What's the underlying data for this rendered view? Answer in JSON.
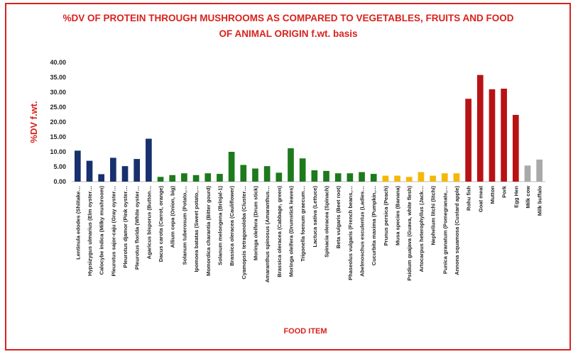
{
  "colors": {
    "border": "#d9221c",
    "title": "#d9221c",
    "mushroom": "#17306e",
    "vegetable": "#1d7a1d",
    "fruit": "#f5b70a",
    "animal": "#b81214",
    "milk": "#a9a9a9"
  },
  "chart_data": {
    "type": "bar",
    "title_line1": "%DV  OF PROTEIN THROUGH MUSHROOMS AS COMPARED TO VEGETABLES, FRUITS AND FOOD",
    "title_line2": "OF ANIMAL ORIGIN f.wt. basis",
    "xlabel": "FOOD ITEM",
    "ylabel": "%DV f.wt.",
    "ylim": [
      0,
      40
    ],
    "yticks": [
      "0.00",
      "5.00",
      "10.00",
      "15.00",
      "20.00",
      "25.00",
      "30.00",
      "35.00",
      "40.00"
    ],
    "grid": false,
    "legend": "none",
    "categories": [
      "Lentinula edodes (Shiitake…",
      "Hypsizygus ulmarius (Elm oyster…",
      "Calocybe indica (Milky mushroom)",
      "Pleurotus sajor-caju (Gray oyster…",
      "Pleurotus djamor (Pink oyster…",
      "Pleurotus florida (White oyster…",
      "Agaricus bisporus (Button…",
      "Dacus carota (Carrot, orange)",
      "Allium cepa (Onion, big)",
      "Solanum tuberosum (Potato,…",
      "Ipomoea batatas (Sweet potato,…",
      "Momordica charantia (Bitter gourd)",
      "Solanum melongena (Brinjal-1)",
      "Brassica oleracea (Cauliflower)",
      "Cyamopsis tetragonoloba (Cluster…",
      "Moringa oleifera (Drum stick)",
      "Amaranthus spinosus (Amaranthus…",
      "Brassica oleracea (Cabbage, green)",
      "Moringa oleifera (Drumstick leaves)",
      "Trigonella foenum graecum…",
      "Lactuca sativa (Lettuce)",
      "Spinacia oleracea (Spinach)",
      "Beta vulgaris (Beet root)",
      "Phaseolus vulgaris (French beans,…",
      "Abelmoschus esculentus (Ladies…",
      "Cucurbita maxima (Pumpkin,…",
      "Prunus persica (Peach)",
      "Musa species (Banana)",
      "Psidium guajava (Guava, white flesh)",
      "Artocarpus heterophyllus (Jack…",
      "Nephelium litchi (litchi)",
      "Punica granatum (Pomegranate,…",
      "Annona squamosa (Custard apple)",
      "Rohu fish",
      "Goat meat",
      "Mutton",
      "Pork",
      "Egg Hen",
      "Milk cow",
      "Milk buffalo"
    ],
    "values": [
      10.4,
      7.0,
      2.5,
      8.0,
      5.2,
      7.6,
      14.4,
      1.6,
      2.2,
      2.8,
      2.2,
      2.8,
      2.6,
      10.0,
      5.6,
      4.4,
      5.2,
      3.0,
      11.2,
      7.8,
      3.8,
      3.6,
      2.8,
      2.8,
      3.2,
      2.6,
      2.0,
      2.0,
      1.6,
      3.2,
      2.0,
      2.8,
      2.8,
      27.8,
      35.8,
      31.0,
      31.2,
      22.4,
      5.4,
      7.4
    ],
    "groups": [
      "mushroom",
      "mushroom",
      "mushroom",
      "mushroom",
      "mushroom",
      "mushroom",
      "mushroom",
      "vegetable",
      "vegetable",
      "vegetable",
      "vegetable",
      "vegetable",
      "vegetable",
      "vegetable",
      "vegetable",
      "vegetable",
      "vegetable",
      "vegetable",
      "vegetable",
      "vegetable",
      "vegetable",
      "vegetable",
      "vegetable",
      "vegetable",
      "vegetable",
      "vegetable",
      "fruit",
      "fruit",
      "fruit",
      "fruit",
      "fruit",
      "fruit",
      "fruit",
      "animal",
      "animal",
      "animal",
      "animal",
      "animal",
      "milk",
      "milk"
    ]
  }
}
